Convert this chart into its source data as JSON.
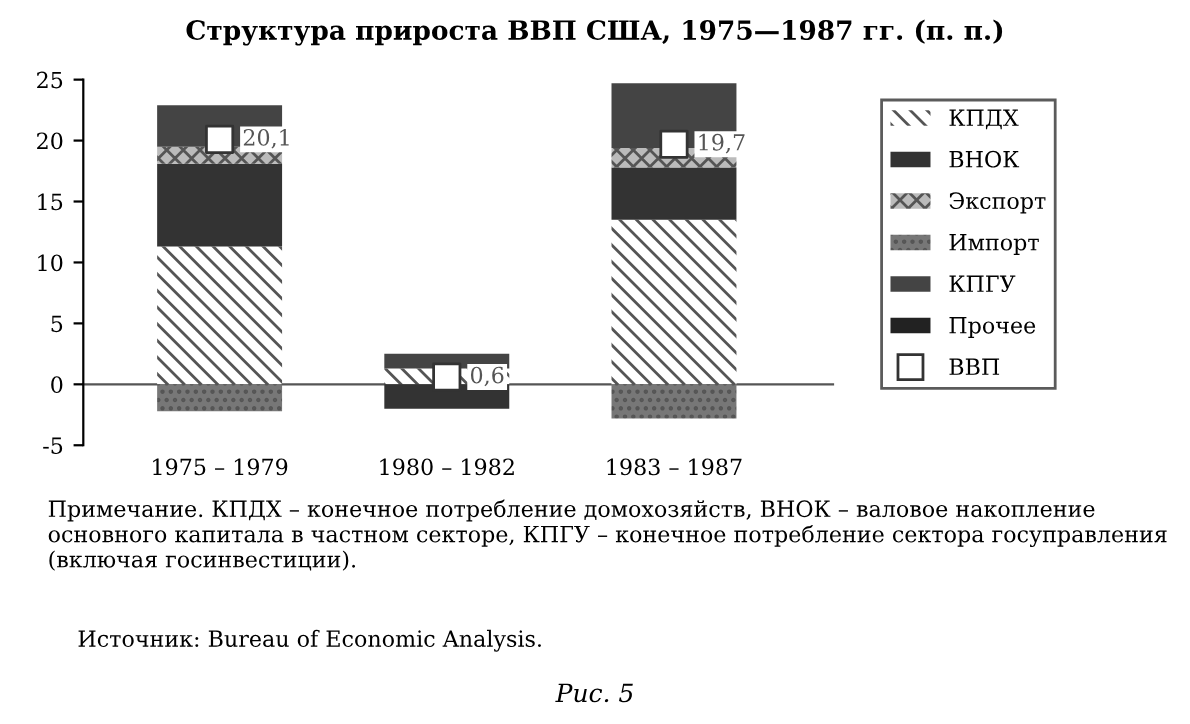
{
  "chart_data": {
    "type": "bar",
    "title": "Структура прироста ВВП США, 1975—1987 гг. (п. п.)",
    "categories": [
      "1975 – 1979",
      "1980 – 1982",
      "1983 – 1987"
    ],
    "stacked": true,
    "series": [
      {
        "name": "КПДХ",
        "color": "#ffffff",
        "values": [
          11.3,
          1.3,
          13.5
        ]
      },
      {
        "name": "ВНОК",
        "color": "#333333",
        "values": [
          6.8,
          -2.0,
          4.3
        ]
      },
      {
        "name": "Экспорт",
        "color": "#bbbbbb",
        "values": [
          1.4,
          null,
          1.6
        ]
      },
      {
        "name": "Импорт",
        "color": "#777777",
        "values": [
          -2.2,
          null,
          -2.8
        ]
      },
      {
        "name": "КПГУ",
        "color": "#444444",
        "values": [
          3.4,
          1.2,
          5.3
        ]
      },
      {
        "name": "Прочее",
        "color": "#222222",
        "values": [
          null,
          null,
          null
        ]
      },
      {
        "name": "ВВП",
        "type": "scatter",
        "color": "#ffffff",
        "marker": "square",
        "x": [
          "1975 – 1979",
          "1980 – 1982",
          "1983 – 1987"
        ],
        "values": [
          20.1,
          0.6,
          19.7
        ],
        "value_labels": [
          "20,1",
          "0,6",
          "19,7"
        ]
      }
    ],
    "ylim": [
      -5,
      25
    ],
    "yticks": [
      -5,
      0,
      5,
      10,
      15,
      20,
      25
    ],
    "legend": "right",
    "annotations": [
      "Примечание. КПДХ – конечное потребление домохозяйств, ВНОК – валовое накопление основного капитала в частном секторе, КПГУ – конечное потребление сектора госуправления (включая госинвестиции).",
      "Источник: Bureau of Economic Analysis.",
      "Рис. 5"
    ]
  }
}
